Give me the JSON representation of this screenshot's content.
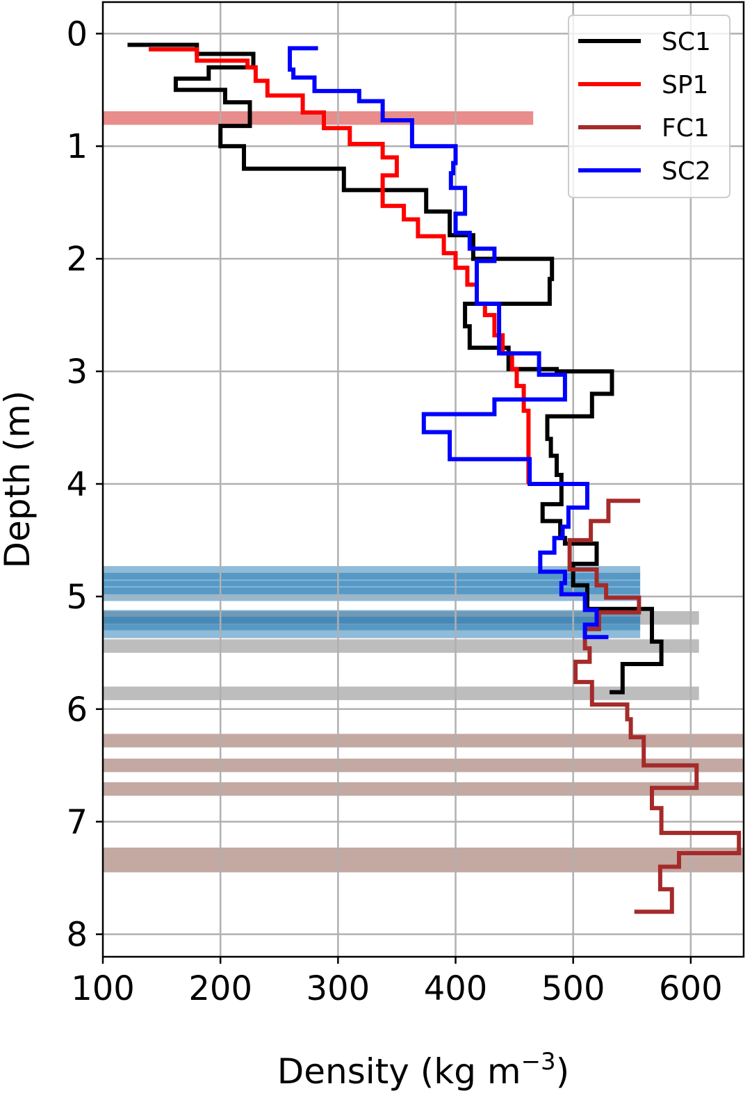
{
  "chart_data": {
    "type": "line",
    "xlabel": "Density (kg m",
    "xlabel_superscript": "−3",
    "xlabel_close": ")",
    "ylabel": "Depth (m)",
    "xlim": [
      100,
      645
    ],
    "ylim": [
      8.2,
      -0.28
    ],
    "x_ticks": [
      100,
      200,
      300,
      400,
      500,
      600
    ],
    "x_tick_labels": [
      "100",
      "200",
      "300",
      "400",
      "500",
      "600"
    ],
    "y_ticks": [
      0,
      1,
      2,
      3,
      4,
      5,
      6,
      7,
      8
    ],
    "y_tick_labels": [
      "0",
      "1",
      "2",
      "3",
      "4",
      "5",
      "6",
      "7",
      "8"
    ],
    "y_inverted": true,
    "grid": true,
    "legend_position": "top-right",
    "bands": [
      {
        "y0": 0.69,
        "y1": 0.81,
        "x0": 100,
        "x1": 466,
        "color": "#e88c8c",
        "opacity": 1
      },
      {
        "y0": 5.13,
        "y1": 5.25,
        "x0": 100,
        "x1": 607,
        "color": "#bdbdbd",
        "opacity": 1
      },
      {
        "y0": 5.38,
        "y1": 5.5,
        "x0": 100,
        "x1": 607,
        "color": "#bdbdbd",
        "opacity": 1
      },
      {
        "y0": 5.8,
        "y1": 5.92,
        "x0": 100,
        "x1": 607,
        "color": "#bdbdbd",
        "opacity": 1
      },
      {
        "y0": 4.73,
        "y1": 4.85,
        "x0": 100,
        "x1": 557,
        "color": "#1f77b4",
        "opacity": 0.5
      },
      {
        "y0": 4.79,
        "y1": 4.91,
        "x0": 100,
        "x1": 557,
        "color": "#1f77b4",
        "opacity": 0.5
      },
      {
        "y0": 4.86,
        "y1": 4.98,
        "x0": 100,
        "x1": 557,
        "color": "#1f77b4",
        "opacity": 0.5
      },
      {
        "y0": 4.92,
        "y1": 5.04,
        "x0": 100,
        "x1": 557,
        "color": "#1f77b4",
        "opacity": 0.5
      },
      {
        "y0": 5.12,
        "y1": 5.24,
        "x0": 100,
        "x1": 557,
        "color": "#1f77b4",
        "opacity": 0.5
      },
      {
        "y0": 5.18,
        "y1": 5.3,
        "x0": 100,
        "x1": 557,
        "color": "#1f77b4",
        "opacity": 0.5
      },
      {
        "y0": 5.25,
        "y1": 5.37,
        "x0": 100,
        "x1": 557,
        "color": "#1f77b4",
        "opacity": 0.5
      },
      {
        "y0": 6.22,
        "y1": 6.34,
        "x0": 100,
        "x1": 645,
        "color": "#c4a8a2",
        "opacity": 1
      },
      {
        "y0": 6.44,
        "y1": 6.56,
        "x0": 100,
        "x1": 645,
        "color": "#c4a8a2",
        "opacity": 1
      },
      {
        "y0": 6.65,
        "y1": 6.77,
        "x0": 100,
        "x1": 645,
        "color": "#c4a8a2",
        "opacity": 1
      },
      {
        "y0": 7.23,
        "y1": 7.35,
        "x0": 100,
        "x1": 645,
        "color": "#c4a8a2",
        "opacity": 1
      },
      {
        "y0": 7.33,
        "y1": 7.45,
        "x0": 100,
        "x1": 645,
        "color": "#c4a8a2",
        "opacity": 1
      }
    ],
    "series": [
      {
        "name": "SC1",
        "color": "#000000",
        "points": [
          [
            121,
            0.1
          ],
          [
            180,
            0.1
          ],
          [
            180,
            0.18
          ],
          [
            228,
            0.18
          ],
          [
            228,
            0.3
          ],
          [
            190,
            0.3
          ],
          [
            190,
            0.4
          ],
          [
            162,
            0.4
          ],
          [
            162,
            0.5
          ],
          [
            204,
            0.5
          ],
          [
            204,
            0.61
          ],
          [
            225,
            0.61
          ],
          [
            225,
            0.82
          ],
          [
            200,
            0.82
          ],
          [
            200,
            1.0
          ],
          [
            220,
            1.0
          ],
          [
            220,
            1.2
          ],
          [
            305,
            1.2
          ],
          [
            305,
            1.39
          ],
          [
            375,
            1.39
          ],
          [
            375,
            1.58
          ],
          [
            395,
            1.58
          ],
          [
            395,
            1.79
          ],
          [
            415,
            1.79
          ],
          [
            415,
            2.0
          ],
          [
            482,
            2.0
          ],
          [
            482,
            2.18
          ],
          [
            480,
            2.18
          ],
          [
            480,
            2.4
          ],
          [
            408,
            2.4
          ],
          [
            408,
            2.6
          ],
          [
            412,
            2.6
          ],
          [
            412,
            2.79
          ],
          [
            445,
            2.79
          ],
          [
            445,
            2.98
          ],
          [
            486,
            2.98
          ],
          [
            486,
            3.0
          ],
          [
            533,
            3.0
          ],
          [
            533,
            3.2
          ],
          [
            516,
            3.2
          ],
          [
            516,
            3.4
          ],
          [
            478,
            3.4
          ],
          [
            478,
            3.6
          ],
          [
            481,
            3.6
          ],
          [
            481,
            3.75
          ],
          [
            486,
            3.75
          ],
          [
            486,
            3.92
          ],
          [
            490,
            3.92
          ],
          [
            490,
            4.18
          ],
          [
            474,
            4.18
          ],
          [
            474,
            4.33
          ],
          [
            489,
            4.33
          ],
          [
            489,
            4.48
          ],
          [
            493,
            4.48
          ],
          [
            493,
            4.53
          ],
          [
            520,
            4.53
          ],
          [
            520,
            4.71
          ],
          [
            500,
            4.71
          ],
          [
            500,
            4.9
          ],
          [
            512,
            4.9
          ],
          [
            512,
            5.11
          ],
          [
            567,
            5.11
          ],
          [
            567,
            5.4
          ],
          [
            575,
            5.4
          ],
          [
            575,
            5.6
          ],
          [
            542,
            5.6
          ],
          [
            542,
            5.85
          ],
          [
            531,
            5.85
          ]
        ]
      },
      {
        "name": "SP1",
        "color": "#ff0000",
        "points": [
          [
            139,
            0.14
          ],
          [
            180,
            0.14
          ],
          [
            180,
            0.24
          ],
          [
            223,
            0.24
          ],
          [
            223,
            0.3
          ],
          [
            230,
            0.3
          ],
          [
            230,
            0.42
          ],
          [
            240,
            0.42
          ],
          [
            240,
            0.55
          ],
          [
            270,
            0.55
          ],
          [
            270,
            0.7
          ],
          [
            288,
            0.7
          ],
          [
            288,
            0.84
          ],
          [
            310,
            0.84
          ],
          [
            310,
            0.98
          ],
          [
            338,
            0.98
          ],
          [
            338,
            1.1
          ],
          [
            350,
            1.1
          ],
          [
            350,
            1.26
          ],
          [
            338,
            1.26
          ],
          [
            338,
            1.53
          ],
          [
            356,
            1.53
          ],
          [
            356,
            1.65
          ],
          [
            368,
            1.65
          ],
          [
            368,
            1.8
          ],
          [
            390,
            1.8
          ],
          [
            390,
            1.95
          ],
          [
            400,
            1.95
          ],
          [
            400,
            2.08
          ],
          [
            410,
            2.08
          ],
          [
            410,
            2.23
          ],
          [
            418,
            2.23
          ],
          [
            418,
            2.4
          ],
          [
            425,
            2.4
          ],
          [
            425,
            2.5
          ],
          [
            433,
            2.5
          ],
          [
            433,
            2.68
          ],
          [
            440,
            2.68
          ],
          [
            440,
            2.84
          ],
          [
            448,
            2.84
          ],
          [
            448,
            2.98
          ],
          [
            452,
            2.98
          ],
          [
            452,
            3.13
          ],
          [
            458,
            3.13
          ],
          [
            458,
            3.35
          ],
          [
            462,
            3.35
          ],
          [
            462,
            4.0
          ]
        ]
      },
      {
        "name": "FC1",
        "color": "#a52a2a",
        "points": [
          [
            557,
            4.15
          ],
          [
            530,
            4.15
          ],
          [
            530,
            4.33
          ],
          [
            515,
            4.33
          ],
          [
            515,
            4.5
          ],
          [
            497,
            4.5
          ],
          [
            497,
            4.76
          ],
          [
            520,
            4.76
          ],
          [
            520,
            4.9
          ],
          [
            528,
            4.9
          ],
          [
            528,
            5.01
          ],
          [
            556,
            5.01
          ],
          [
            556,
            5.14
          ],
          [
            522,
            5.14
          ],
          [
            522,
            5.29
          ],
          [
            510,
            5.29
          ],
          [
            510,
            5.46
          ],
          [
            514,
            5.46
          ],
          [
            514,
            5.58
          ],
          [
            502,
            5.58
          ],
          [
            502,
            5.76
          ],
          [
            516,
            5.76
          ],
          [
            516,
            5.96
          ],
          [
            546,
            5.96
          ],
          [
            546,
            6.09
          ],
          [
            549,
            6.09
          ],
          [
            549,
            6.25
          ],
          [
            560,
            6.25
          ],
          [
            560,
            6.5
          ],
          [
            605,
            6.5
          ],
          [
            605,
            6.7
          ],
          [
            567,
            6.7
          ],
          [
            567,
            6.88
          ],
          [
            575,
            6.88
          ],
          [
            575,
            7.1
          ],
          [
            641,
            7.1
          ],
          [
            641,
            7.28
          ],
          [
            590,
            7.28
          ],
          [
            590,
            7.4
          ],
          [
            574,
            7.4
          ],
          [
            574,
            7.6
          ],
          [
            584,
            7.6
          ],
          [
            584,
            7.8
          ],
          [
            552,
            7.8
          ]
        ]
      },
      {
        "name": "SC2",
        "color": "#0000ff",
        "points": [
          [
            283,
            0.13
          ],
          [
            259,
            0.13
          ],
          [
            259,
            0.32
          ],
          [
            262,
            0.32
          ],
          [
            262,
            0.39
          ],
          [
            280,
            0.39
          ],
          [
            280,
            0.51
          ],
          [
            318,
            0.51
          ],
          [
            318,
            0.6
          ],
          [
            338,
            0.6
          ],
          [
            338,
            0.77
          ],
          [
            363,
            0.77
          ],
          [
            363,
            1.0
          ],
          [
            400,
            1.0
          ],
          [
            400,
            1.15
          ],
          [
            398,
            1.15
          ],
          [
            398,
            1.24
          ],
          [
            396,
            1.24
          ],
          [
            396,
            1.37
          ],
          [
            408,
            1.37
          ],
          [
            408,
            1.6
          ],
          [
            400,
            1.6
          ],
          [
            400,
            1.77
          ],
          [
            412,
            1.77
          ],
          [
            412,
            1.91
          ],
          [
            433,
            1.91
          ],
          [
            433,
            2.02
          ],
          [
            418,
            2.02
          ],
          [
            418,
            2.4
          ],
          [
            437,
            2.4
          ],
          [
            437,
            2.84
          ],
          [
            471,
            2.84
          ],
          [
            471,
            3.03
          ],
          [
            493,
            3.03
          ],
          [
            493,
            3.25
          ],
          [
            433,
            3.25
          ],
          [
            433,
            3.38
          ],
          [
            373,
            3.38
          ],
          [
            373,
            3.54
          ],
          [
            395,
            3.54
          ],
          [
            395,
            3.78
          ],
          [
            463,
            3.78
          ],
          [
            463,
            4.0
          ],
          [
            512,
            4.0
          ],
          [
            512,
            4.21
          ],
          [
            496,
            4.21
          ],
          [
            496,
            4.38
          ],
          [
            491,
            4.38
          ],
          [
            491,
            4.48
          ],
          [
            484,
            4.48
          ],
          [
            484,
            4.61
          ],
          [
            472,
            4.61
          ],
          [
            472,
            4.78
          ],
          [
            493,
            4.78
          ],
          [
            493,
            4.88
          ],
          [
            490,
            4.88
          ],
          [
            490,
            4.98
          ],
          [
            510,
            4.98
          ],
          [
            510,
            5.12
          ],
          [
            520,
            5.12
          ],
          [
            520,
            5.25
          ],
          [
            510,
            5.25
          ],
          [
            510,
            5.36
          ],
          [
            530,
            5.36
          ]
        ]
      }
    ],
    "legend": [
      {
        "label": "SC1",
        "color": "#000000"
      },
      {
        "label": "SP1",
        "color": "#ff0000"
      },
      {
        "label": "FC1",
        "color": "#a52a2a"
      },
      {
        "label": "SC2",
        "color": "#0000ff"
      }
    ]
  }
}
